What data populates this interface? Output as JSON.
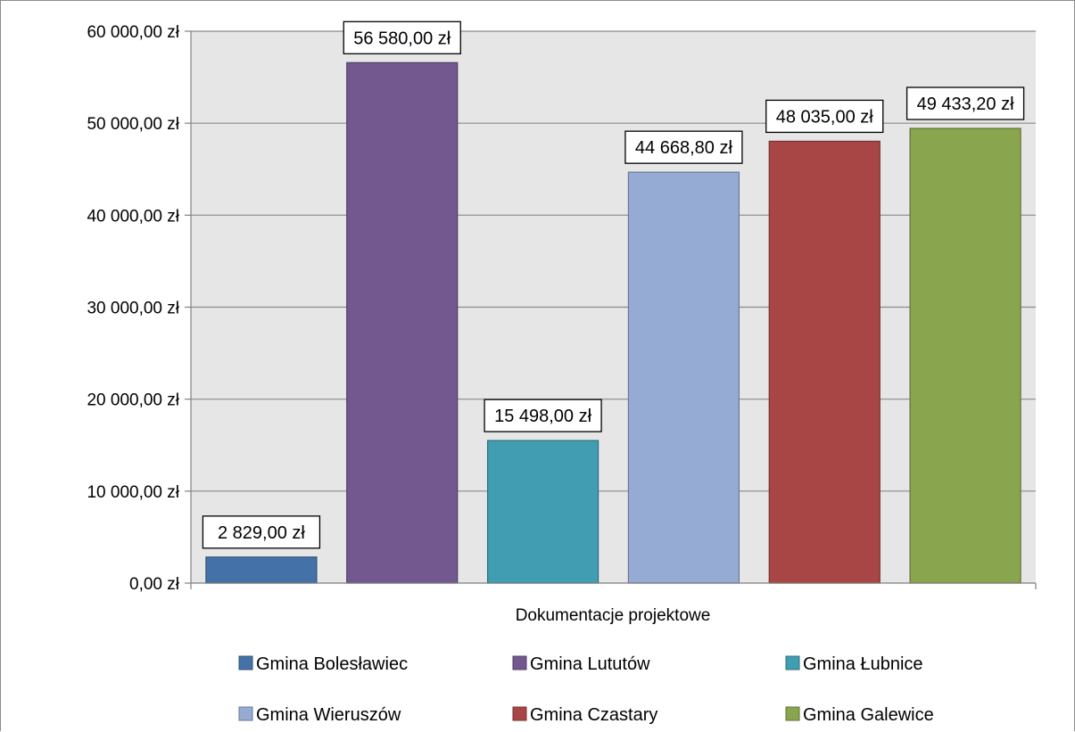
{
  "chart_data": {
    "type": "bar",
    "title": "",
    "xlabel": "Dokumentacje projektowe",
    "ylabel": "",
    "ylim": [
      0,
      60000
    ],
    "y_ticks": [
      0,
      10000,
      20000,
      30000,
      40000,
      50000,
      60000
    ],
    "y_tick_labels": [
      "0,00 zł",
      "10 000,00 zł",
      "20 000,00 zł",
      "30 000,00 zł",
      "40 000,00 zł",
      "50 000,00 zł",
      "60 000,00 zł"
    ],
    "grid": true,
    "plot_background": "#e6e6e6",
    "legend_position": "bottom",
    "series": [
      {
        "name": "Gmina Bolesławiec",
        "value": 2829.0,
        "label": "2 829,00 zł",
        "color": "#4472a8"
      },
      {
        "name": "Gmina Lututów",
        "value": 56580.0,
        "label": "56 580,00 zł",
        "color": "#73588f"
      },
      {
        "name": "Gmina Łubnice",
        "value": 15498.0,
        "label": "15 498,00 zł",
        "color": "#419db2"
      },
      {
        "name": "Gmina Wieruszów",
        "value": 44668.8,
        "label": "44 668,80 zł",
        "color": "#95abd3"
      },
      {
        "name": "Gmina Czastary",
        "value": 48035.0,
        "label": "48 035,00 zł",
        "color": "#a84645"
      },
      {
        "name": "Gmina Galewice",
        "value": 49433.2,
        "label": "49 433,20 zł",
        "color": "#89a54e"
      }
    ]
  }
}
